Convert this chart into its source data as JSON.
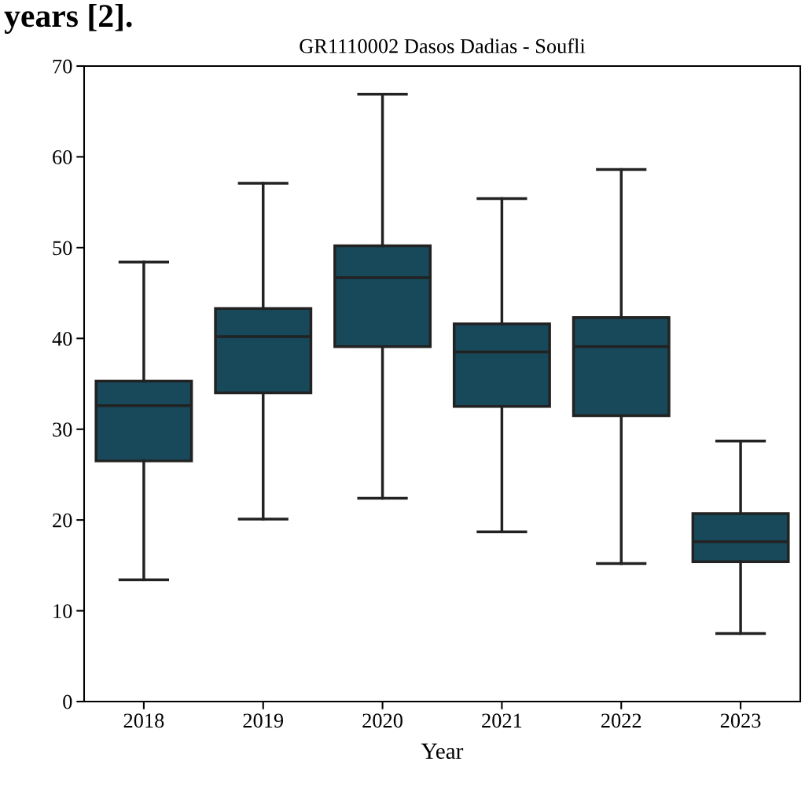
{
  "chart_data": {
    "type": "box",
    "title": "GR1110002 Dasos Dadias - Soufli",
    "xlabel": "Year",
    "annotations": [
      "years [2]."
    ],
    "categories": [
      "2018",
      "2019",
      "2020",
      "2021",
      "2022",
      "2023"
    ],
    "color": "#17495a",
    "boxes": [
      {
        "low": 13.4,
        "q1": 26.5,
        "median": 32.6,
        "q3": 35.3,
        "high": 48.4
      },
      {
        "low": 20.1,
        "q1": 34.0,
        "median": 40.2,
        "q3": 43.3,
        "high": 57.1
      },
      {
        "low": 22.4,
        "q1": 39.1,
        "median": 46.7,
        "q3": 50.2,
        "high": 66.9
      },
      {
        "low": 18.7,
        "q1": 32.5,
        "median": 38.5,
        "q3": 41.6,
        "high": 55.4
      },
      {
        "low": 15.2,
        "q1": 31.5,
        "median": 39.1,
        "q3": 42.3,
        "high": 58.6
      },
      {
        "low": 7.5,
        "q1": 15.4,
        "median": 17.6,
        "q3": 20.7,
        "high": 28.7
      }
    ],
    "ylim": [
      0,
      70
    ],
    "yticks": [
      0,
      10,
      20,
      30,
      40,
      50,
      60,
      70
    ],
    "grid": false
  }
}
